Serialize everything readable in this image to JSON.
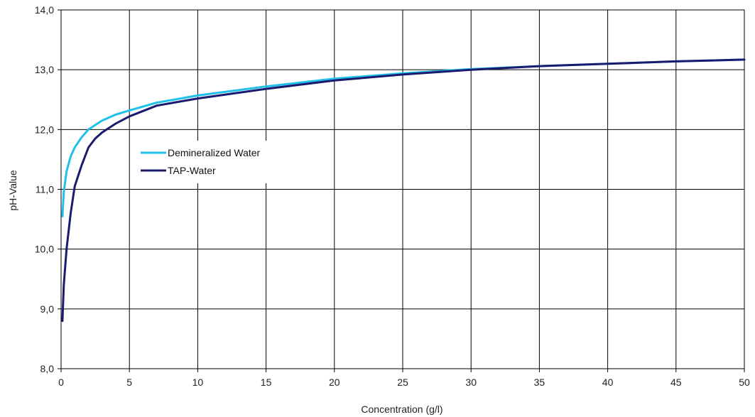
{
  "chart_data": {
    "type": "line",
    "title": "",
    "xlabel": "Concentration (g/l)",
    "ylabel": "pH-Value",
    "xlim": [
      0,
      50
    ],
    "ylim": [
      8,
      14
    ],
    "x_ticks": [
      0,
      5,
      10,
      15,
      20,
      25,
      30,
      35,
      40,
      45,
      50
    ],
    "x_tick_labels": [
      "0",
      "5",
      "10",
      "15",
      "20",
      "25",
      "30",
      "35",
      "40",
      "45",
      "50"
    ],
    "y_ticks": [
      8,
      9,
      10,
      11,
      12,
      13,
      14
    ],
    "y_tick_labels": [
      "8,0",
      "9,0",
      "10,0",
      "11,0",
      "12,0",
      "13,0",
      "14,0"
    ],
    "grid": true,
    "legend_position": "upper-left inside plot",
    "series": [
      {
        "name": "Demineralized Water",
        "color": "#20c0e8",
        "x": [
          0.1,
          0.2,
          0.4,
          0.7,
          1.0,
          1.5,
          2.0,
          3.0,
          4.0,
          5.0,
          7.0,
          10.0,
          15.0,
          20.0,
          25.0,
          30.0,
          35.0,
          40.0,
          45.0,
          50.0
        ],
        "y": [
          10.55,
          10.95,
          11.3,
          11.55,
          11.7,
          11.87,
          12.0,
          12.15,
          12.25,
          12.32,
          12.45,
          12.57,
          12.72,
          12.85,
          12.94,
          13.01,
          13.06,
          13.1,
          13.14,
          13.17
        ]
      },
      {
        "name": "TAP-Water",
        "color": "#1a1a6e",
        "x": [
          0.1,
          0.2,
          0.4,
          0.7,
          1.0,
          1.5,
          2.0,
          2.5,
          3.0,
          4.0,
          5.0,
          7.0,
          10.0,
          15.0,
          20.0,
          25.0,
          30.0,
          35.0,
          40.0,
          45.0,
          50.0
        ],
        "y": [
          8.8,
          9.4,
          10.0,
          10.6,
          11.05,
          11.4,
          11.7,
          11.85,
          11.95,
          12.1,
          12.22,
          12.4,
          12.52,
          12.68,
          12.82,
          12.92,
          13.0,
          13.06,
          13.1,
          13.14,
          13.17
        ]
      }
    ]
  }
}
